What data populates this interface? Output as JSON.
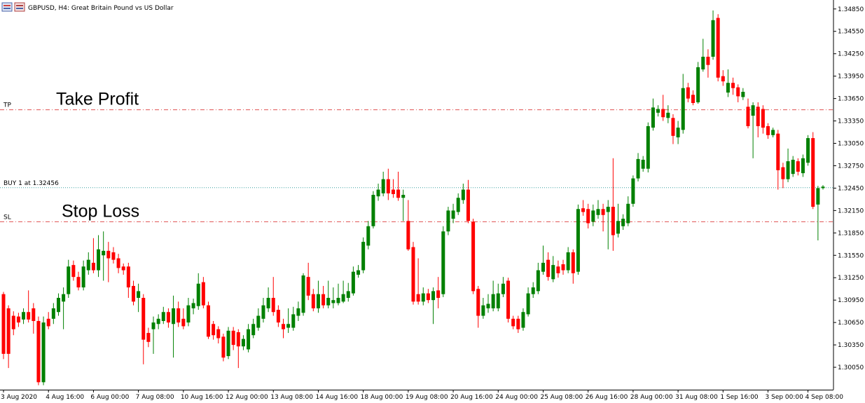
{
  "chart_data": {
    "type": "candlestick",
    "title": "GBPUSD, H4:  Great Britain Pound vs US Dollar",
    "up_color": "#008000",
    "down_color": "#ff0000",
    "ylim": [
      1.2975,
      1.3497
    ],
    "yticks": [
      {
        "value": 1.3005,
        "label": "1.30050"
      },
      {
        "value": 1.3035,
        "label": "1.30350"
      },
      {
        "value": 1.3065,
        "label": "1.30650"
      },
      {
        "value": 1.3095,
        "label": "1.30950"
      },
      {
        "value": 1.3125,
        "label": "1.31250"
      },
      {
        "value": 1.3155,
        "label": "1.31550"
      },
      {
        "value": 1.3185,
        "label": "1.31850"
      },
      {
        "value": 1.3215,
        "label": "1.32150"
      },
      {
        "value": 1.3245,
        "label": "1.32450"
      },
      {
        "value": 1.3275,
        "label": "1.32750"
      },
      {
        "value": 1.3305,
        "label": "1.33050"
      },
      {
        "value": 1.3335,
        "label": "1.33350"
      },
      {
        "value": 1.3365,
        "label": "1.33650"
      },
      {
        "value": 1.3395,
        "label": "1.33950"
      },
      {
        "value": 1.3425,
        "label": "1.34250"
      },
      {
        "value": 1.3455,
        "label": "1.34550"
      },
      {
        "value": 1.3485,
        "label": "1.34850"
      }
    ],
    "categories": [
      "3 Aug 2020",
      null,
      null,
      null,
      null,
      null,
      null,
      null,
      null,
      "4 Aug 16:00",
      null,
      null,
      null,
      null,
      null,
      null,
      null,
      null,
      "6 Aug 00:00",
      null,
      null,
      null,
      null,
      null,
      null,
      null,
      null,
      "7 Aug 08:00",
      null,
      null,
      null,
      null,
      null,
      null,
      null,
      null,
      "10 Aug 16:00",
      null,
      null,
      null,
      null,
      null,
      null,
      null,
      null,
      "12 Aug 00:00",
      null,
      null,
      null,
      null,
      null,
      null,
      null,
      null,
      "13 Aug 08:00",
      null,
      null,
      null,
      null,
      null,
      null,
      null,
      null,
      "14 Aug 16:00",
      null,
      null,
      null,
      null,
      null,
      null,
      null,
      null,
      "18 Aug 00:00",
      null,
      null,
      null,
      null,
      null,
      null,
      null,
      null,
      "19 Aug 08:00",
      null,
      null,
      null,
      null,
      null,
      null,
      null,
      null,
      "20 Aug 16:00",
      null,
      null,
      null,
      null,
      null,
      null,
      null,
      null,
      "24 Aug 00:00",
      null,
      null,
      null,
      null,
      null,
      null,
      null,
      null,
      "25 Aug 08:00",
      null,
      null,
      null,
      null,
      null,
      null,
      null,
      null,
      "26 Aug 16:00",
      null,
      null,
      null,
      null,
      null,
      null,
      null,
      null,
      "28 Aug 00:00",
      null,
      null,
      null,
      null,
      null,
      null,
      null,
      null,
      "31 Aug 08:00",
      null,
      null,
      null,
      null,
      null,
      null,
      null,
      null,
      "1 Sep 16:00",
      null,
      null,
      null,
      null,
      null,
      null,
      null,
      null,
      "3 Sep 00:00",
      null,
      null,
      null,
      null,
      null,
      null,
      null,
      "4 Sep 08:00",
      null,
      null,
      null
    ],
    "open": [
      1.3103,
      1.3084,
      1.3074,
      1.3073,
      1.3069,
      1.3079,
      1.3084,
      1.3067,
      1.2985,
      1.307,
      1.307,
      1.3079,
      1.3093,
      1.3103,
      1.3142,
      1.3126,
      1.3112,
      1.3135,
      1.3145,
      1.3135,
      1.3155,
      1.3161,
      1.3159,
      1.3151,
      1.314,
      1.314,
      1.3114,
      1.3098,
      1.3098,
      1.3051,
      1.3056,
      1.3063,
      1.3067,
      1.3079,
      1.3063,
      1.3084,
      1.307,
      1.3065,
      1.3084,
      1.3087,
      1.3119,
      1.3088,
      1.3063,
      1.3056,
      1.3046,
      1.302,
      1.3054,
      1.3052,
      1.3033,
      1.3029,
      1.3048,
      1.3058,
      1.307,
      1.3084,
      1.3098,
      1.3082,
      1.3063,
      1.3058,
      1.3058,
      1.3074,
      1.3078,
      1.3126,
      1.3103,
      1.3084,
      1.3103,
      1.3088,
      1.3091,
      1.3091,
      1.3093,
      1.3098,
      1.3104,
      1.3129,
      1.3135,
      1.3168,
      1.3194,
      1.3234,
      1.3238,
      1.3257,
      1.3243,
      1.3243,
      1.3232,
      1.3201,
      1.3166,
      1.3103,
      1.3093,
      1.3104,
      1.3095,
      1.3108,
      1.3103,
      1.3187,
      1.3204,
      1.3213,
      1.3229,
      1.3243,
      1.32,
      1.311,
      1.3074,
      1.3084,
      1.3084,
      1.3084,
      1.3103,
      1.3121,
      1.307,
      1.307,
      1.3058,
      1.3076,
      1.3103,
      1.3107,
      1.3133,
      1.3149,
      1.3123,
      1.314,
      1.3143,
      1.3135,
      1.3159,
      1.3133,
      1.3218,
      1.3217,
      1.32,
      1.3209,
      1.3217,
      1.3213,
      1.322,
      1.3184,
      1.3194,
      1.3198,
      1.3224,
      1.3258,
      1.3271,
      1.3271,
      1.3326,
      1.3346,
      1.3351,
      1.3339,
      1.3339,
      1.3313,
      1.3323,
      1.338,
      1.337,
      1.336,
      1.3404,
      1.3421,
      1.3421,
      1.3473,
      1.3395,
      1.3373,
      1.3386,
      1.338,
      1.3367,
      1.3354,
      1.3342,
      1.3354,
      1.3351,
      1.3328,
      1.3316,
      1.3318,
      1.3273,
      1.3257,
      1.3264,
      1.3281,
      1.3265,
      1.3279,
      1.3312,
      1.3223,
      1.3245
    ],
    "high": [
      1.3106,
      1.3088,
      1.308,
      1.3078,
      1.3084,
      1.3108,
      1.3091,
      1.3073,
      1.3073,
      1.3079,
      1.3091,
      1.3104,
      1.3112,
      1.3149,
      1.3148,
      1.3133,
      1.3148,
      1.3159,
      1.3178,
      1.3182,
      1.3187,
      1.3173,
      1.3166,
      1.3157,
      1.3144,
      1.3145,
      1.3121,
      1.3117,
      1.3103,
      1.3058,
      1.3073,
      1.3076,
      1.3086,
      1.3084,
      1.3101,
      1.3093,
      1.3084,
      1.3098,
      1.3097,
      1.3131,
      1.3126,
      1.3093,
      1.3067,
      1.306,
      1.305,
      1.3059,
      1.3059,
      1.3056,
      1.3048,
      1.3063,
      1.307,
      1.3084,
      1.3098,
      1.3112,
      1.3126,
      1.3088,
      1.307,
      1.3084,
      1.3086,
      1.3093,
      1.3131,
      1.3145,
      1.311,
      1.3121,
      1.3114,
      1.3121,
      1.3112,
      1.3117,
      1.3121,
      1.3118,
      1.314,
      1.3142,
      1.3179,
      1.3201,
      1.3241,
      1.3251,
      1.3267,
      1.3271,
      1.3257,
      1.3267,
      1.3243,
      1.3229,
      1.3173,
      1.3151,
      1.3112,
      1.311,
      1.3112,
      1.3126,
      1.3194,
      1.322,
      1.3224,
      1.3238,
      1.3251,
      1.3256,
      1.3204,
      1.3114,
      1.3098,
      1.3103,
      1.3121,
      1.3117,
      1.3126,
      1.3125,
      1.3074,
      1.3074,
      1.3084,
      1.3112,
      1.3119,
      1.3145,
      1.3168,
      1.3159,
      1.3154,
      1.3148,
      1.3149,
      1.3166,
      1.3163,
      1.3223,
      1.3229,
      1.3224,
      1.3223,
      1.3229,
      1.3224,
      1.3229,
      1.3285,
      1.3224,
      1.321,
      1.3234,
      1.3262,
      1.3292,
      1.3288,
      1.3333,
      1.3365,
      1.3356,
      1.337,
      1.3356,
      1.3344,
      1.3335,
      1.3398,
      1.3386,
      1.3376,
      1.3414,
      1.3445,
      1.3431,
      1.3483,
      1.3478,
      1.3403,
      1.3404,
      1.3393,
      1.3384,
      1.3379,
      1.3365,
      1.336,
      1.336,
      1.3356,
      1.3332,
      1.3326,
      1.3323,
      1.3279,
      1.3298,
      1.3288,
      1.3285,
      1.329,
      1.3316,
      1.332,
      1.3248,
      1.3249
    ],
    "low": [
      1.3016,
      1.3004,
      1.3048,
      1.3059,
      1.3063,
      1.3065,
      1.305,
      1.2981,
      1.2981,
      1.3056,
      1.3063,
      1.3074,
      1.3056,
      1.3098,
      1.3121,
      1.3108,
      1.3108,
      1.3129,
      1.3131,
      1.3126,
      1.3121,
      1.3119,
      1.3144,
      1.3131,
      1.3129,
      1.3098,
      1.3088,
      1.3079,
      1.3009,
      1.3032,
      1.3023,
      1.3056,
      1.3063,
      1.3058,
      1.3018,
      1.3059,
      1.3056,
      1.306,
      1.3076,
      1.3082,
      1.3084,
      1.3043,
      1.3042,
      1.3037,
      1.3013,
      1.3016,
      1.3028,
      1.3004,
      1.3028,
      1.3025,
      1.3044,
      1.3054,
      1.3065,
      1.3079,
      1.3074,
      1.3059,
      1.3044,
      1.3051,
      1.3054,
      1.3067,
      1.3074,
      1.3095,
      1.308,
      1.3078,
      1.3084,
      1.3084,
      1.3084,
      1.3088,
      1.3091,
      1.3093,
      1.3101,
      1.3125,
      1.3131,
      1.3163,
      1.3191,
      1.3228,
      1.3234,
      1.3229,
      1.3232,
      1.3228,
      1.3201,
      1.3161,
      1.3089,
      1.3089,
      1.3088,
      1.3091,
      1.3063,
      1.3084,
      1.3099,
      1.3182,
      1.3198,
      1.3209,
      1.3224,
      1.3198,
      1.3103,
      1.3058,
      1.307,
      1.3078,
      1.308,
      1.308,
      1.3099,
      1.3065,
      1.3056,
      1.3051,
      1.3054,
      1.3073,
      1.3098,
      1.3103,
      1.3129,
      1.3121,
      1.3119,
      1.3125,
      1.3129,
      1.3131,
      1.3117,
      1.3129,
      1.3208,
      1.3191,
      1.3194,
      1.3204,
      1.3187,
      1.3163,
      1.3161,
      1.3179,
      1.3189,
      1.3194,
      1.322,
      1.3254,
      1.3267,
      1.3266,
      1.3322,
      1.3341,
      1.3335,
      1.3332,
      1.3304,
      1.3304,
      1.3318,
      1.336,
      1.3356,
      1.3358,
      1.3401,
      1.3393,
      1.3417,
      1.3388,
      1.3382,
      1.3367,
      1.337,
      1.336,
      1.3363,
      1.3325,
      1.3285,
      1.3313,
      1.3318,
      1.3311,
      1.3313,
      1.3243,
      1.3245,
      1.3253,
      1.326,
      1.3262,
      1.326,
      1.3275,
      1.3217,
      1.3175,
      1.3243
    ],
    "close": [
      1.3023,
      1.3023,
      1.3056,
      1.3065,
      1.3079,
      1.3069,
      1.3067,
      1.2985,
      1.3065,
      1.306,
      1.3084,
      1.3098,
      1.3103,
      1.314,
      1.3126,
      1.3112,
      1.314,
      1.3149,
      1.3135,
      1.3163,
      1.3161,
      1.3151,
      1.3149,
      1.3138,
      1.3135,
      1.3112,
      1.3093,
      1.3107,
      1.3042,
      1.3039,
      1.3065,
      1.307,
      1.3079,
      1.3065,
      1.3084,
      1.3065,
      1.306,
      1.3088,
      1.3091,
      1.3117,
      1.3088,
      1.3046,
      1.3048,
      1.3044,
      1.3018,
      1.3054,
      1.3035,
      1.3033,
      1.3043,
      1.3056,
      1.3063,
      1.3074,
      1.3088,
      1.3098,
      1.3079,
      1.3065,
      1.3056,
      1.3063,
      1.3076,
      1.3084,
      1.3128,
      1.3101,
      1.3084,
      1.3103,
      1.3088,
      1.3098,
      1.3095,
      1.3098,
      1.3103,
      1.3107,
      1.3133,
      1.3135,
      1.3173,
      1.3194,
      1.3236,
      1.3243,
      1.3257,
      1.3238,
      1.3237,
      1.3232,
      1.3236,
      1.3163,
      1.3093,
      1.3093,
      1.3104,
      1.3095,
      1.3107,
      1.3098,
      1.3187,
      1.3215,
      1.3215,
      1.3232,
      1.3243,
      1.3201,
      1.3107,
      1.3074,
      1.3088,
      1.309,
      1.3103,
      1.3104,
      1.3117,
      1.307,
      1.306,
      1.3056,
      1.3079,
      1.3104,
      1.3112,
      1.3135,
      1.3145,
      1.3126,
      1.3142,
      1.3131,
      1.3135,
      1.3159,
      1.3131,
      1.3217,
      1.3213,
      1.3198,
      1.3215,
      1.3217,
      1.3209,
      1.322,
      1.3182,
      1.3201,
      1.3204,
      1.3224,
      1.3258,
      1.3284,
      1.3283,
      1.3328,
      1.3353,
      1.3351,
      1.334,
      1.3346,
      1.3315,
      1.3326,
      1.3379,
      1.3365,
      1.3359,
      1.3407,
      1.3421,
      1.341,
      1.347,
      1.3393,
      1.3388,
      1.3386,
      1.3379,
      1.3368,
      1.3374,
      1.3328,
      1.3356,
      1.3328,
      1.3326,
      1.3316,
      1.3323,
      1.3269,
      1.3257,
      1.3281,
      1.3283,
      1.3267,
      1.3285,
      1.3312,
      1.322,
      1.3245,
      1.3247
    ],
    "levels": [
      {
        "label": "TP",
        "value": 1.335,
        "color": "#e05050",
        "style": "dash-dot"
      },
      {
        "label": "BUY 1 at 1.32456",
        "value": 1.32456,
        "color": "#3aa0a0",
        "style": "dotted"
      },
      {
        "label": "SL",
        "value": 1.32,
        "color": "#e05050",
        "style": "dash-dot"
      }
    ],
    "annotations": [
      {
        "text": "Take Profit",
        "value": 1.3365
      },
      {
        "text": "Stop Loss",
        "value": 1.3215
      }
    ]
  }
}
